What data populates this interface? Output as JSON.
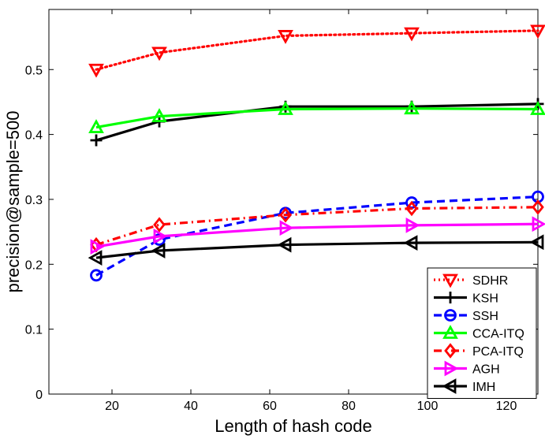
{
  "chart_data": {
    "type": "line",
    "xlabel": "Length of hash code",
    "ylabel": "precision@sample=500",
    "xlim": [
      4,
      128
    ],
    "ylim": [
      0,
      0.5926
    ],
    "xticks": [
      20,
      40,
      60,
      80,
      100,
      120
    ],
    "yticks": [
      0,
      0.1,
      0.2,
      0.3,
      0.4,
      0.5
    ],
    "ytick_labels": [
      "0",
      "0.1",
      "0.2",
      "0.3",
      "0.4",
      "0.5"
    ],
    "grid": false,
    "legend_position": "bottom-right",
    "x": [
      16,
      32,
      64,
      96,
      128
    ],
    "series": [
      {
        "name": "SDHR",
        "values": [
          0.5,
          0.526,
          0.552,
          0.556,
          0.56
        ],
        "color": "#ff0000",
        "dash": "dotted",
        "marker": "triangle-down"
      },
      {
        "name": "KSH",
        "values": [
          0.391,
          0.42,
          0.443,
          0.443,
          0.447
        ],
        "color": "#000000",
        "dash": "solid",
        "marker": "plus"
      },
      {
        "name": "SSH",
        "values": [
          0.183,
          0.238,
          0.279,
          0.295,
          0.304
        ],
        "color": "#0000ff",
        "dash": "dashed",
        "marker": "circle"
      },
      {
        "name": "CCA-ITQ",
        "values": [
          0.411,
          0.428,
          0.439,
          0.44,
          0.439
        ],
        "color": "#00ff00",
        "dash": "solid",
        "marker": "triangle-up"
      },
      {
        "name": "PCA-ITQ",
        "values": [
          0.23,
          0.261,
          0.276,
          0.286,
          0.288
        ],
        "color": "#ff0000",
        "dash": "dashdot",
        "marker": "diamond"
      },
      {
        "name": "AGH",
        "values": [
          0.227,
          0.243,
          0.256,
          0.26,
          0.262
        ],
        "color": "#ff00ff",
        "dash": "solid",
        "marker": "triangle-right"
      },
      {
        "name": "IMH",
        "values": [
          0.21,
          0.221,
          0.23,
          0.233,
          0.234
        ],
        "color": "#000000",
        "dash": "solid",
        "marker": "triangle-left"
      }
    ]
  }
}
